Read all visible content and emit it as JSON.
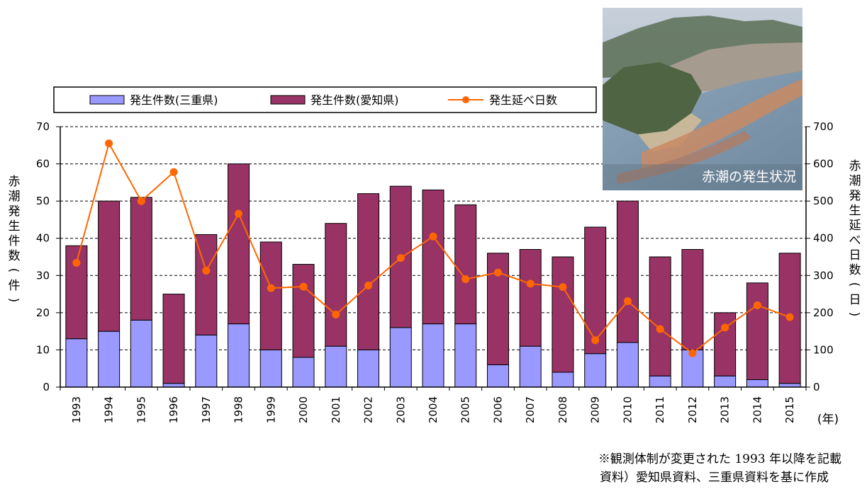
{
  "chart_data": {
    "type": "bar",
    "stacked": true,
    "categories": [
      "1993",
      "1994",
      "1995",
      "1996",
      "1997",
      "1998",
      "1999",
      "2000",
      "2001",
      "2002",
      "2003",
      "2004",
      "2005",
      "2006",
      "2007",
      "2008",
      "2009",
      "2010",
      "2011",
      "2012",
      "2013",
      "2014",
      "2015"
    ],
    "series": [
      {
        "name": "発生件数(三重県)",
        "type": "bar",
        "axis": "left",
        "color": "#9999ff",
        "values": [
          13,
          15,
          18,
          1,
          14,
          17,
          10,
          8,
          11,
          10,
          16,
          17,
          17,
          6,
          11,
          4,
          9,
          12,
          3,
          10,
          3,
          2,
          1
        ]
      },
      {
        "name": "発生件数(愛知県)",
        "type": "bar",
        "axis": "left",
        "color": "#993366",
        "values": [
          25,
          35,
          33,
          24,
          27,
          43,
          29,
          25,
          33,
          42,
          38,
          36,
          32,
          30,
          26,
          31,
          34,
          38,
          32,
          27,
          17,
          26,
          35
        ]
      },
      {
        "name": "発生延べ日数",
        "type": "line",
        "axis": "right",
        "color": "#ff6600",
        "values": [
          334,
          655,
          500,
          578,
          313,
          466,
          266,
          270,
          195,
          273,
          347,
          405,
          290,
          308,
          278,
          269,
          126,
          231,
          156,
          91,
          160,
          220,
          188
        ]
      }
    ],
    "ylabel_left": "赤潮発生件数(件)",
    "ylabel_right": "赤潮発生延べ日数(日)",
    "xunit": "(年)",
    "ylim_left": [
      0,
      70
    ],
    "ylim_right": [
      0,
      700
    ],
    "yticks_left": [
      0,
      10,
      20,
      30,
      40,
      50,
      60,
      70
    ],
    "yticks_right": [
      0,
      100,
      200,
      300,
      400,
      500,
      600,
      700
    ],
    "grid": "dashed horizontal",
    "legend_position": "top"
  },
  "photo": {
    "caption": "赤潮の発生状況",
    "colors": {
      "sky": "#b9c3cf",
      "sea": "#7d98ae",
      "land": "#4f6442",
      "bloom": "#c98a63"
    }
  },
  "notes": {
    "line1": "※観測体制が変更された 1993 年以降を記載",
    "line2": "資料）愛知県資料、三重県資料を基に作成"
  }
}
